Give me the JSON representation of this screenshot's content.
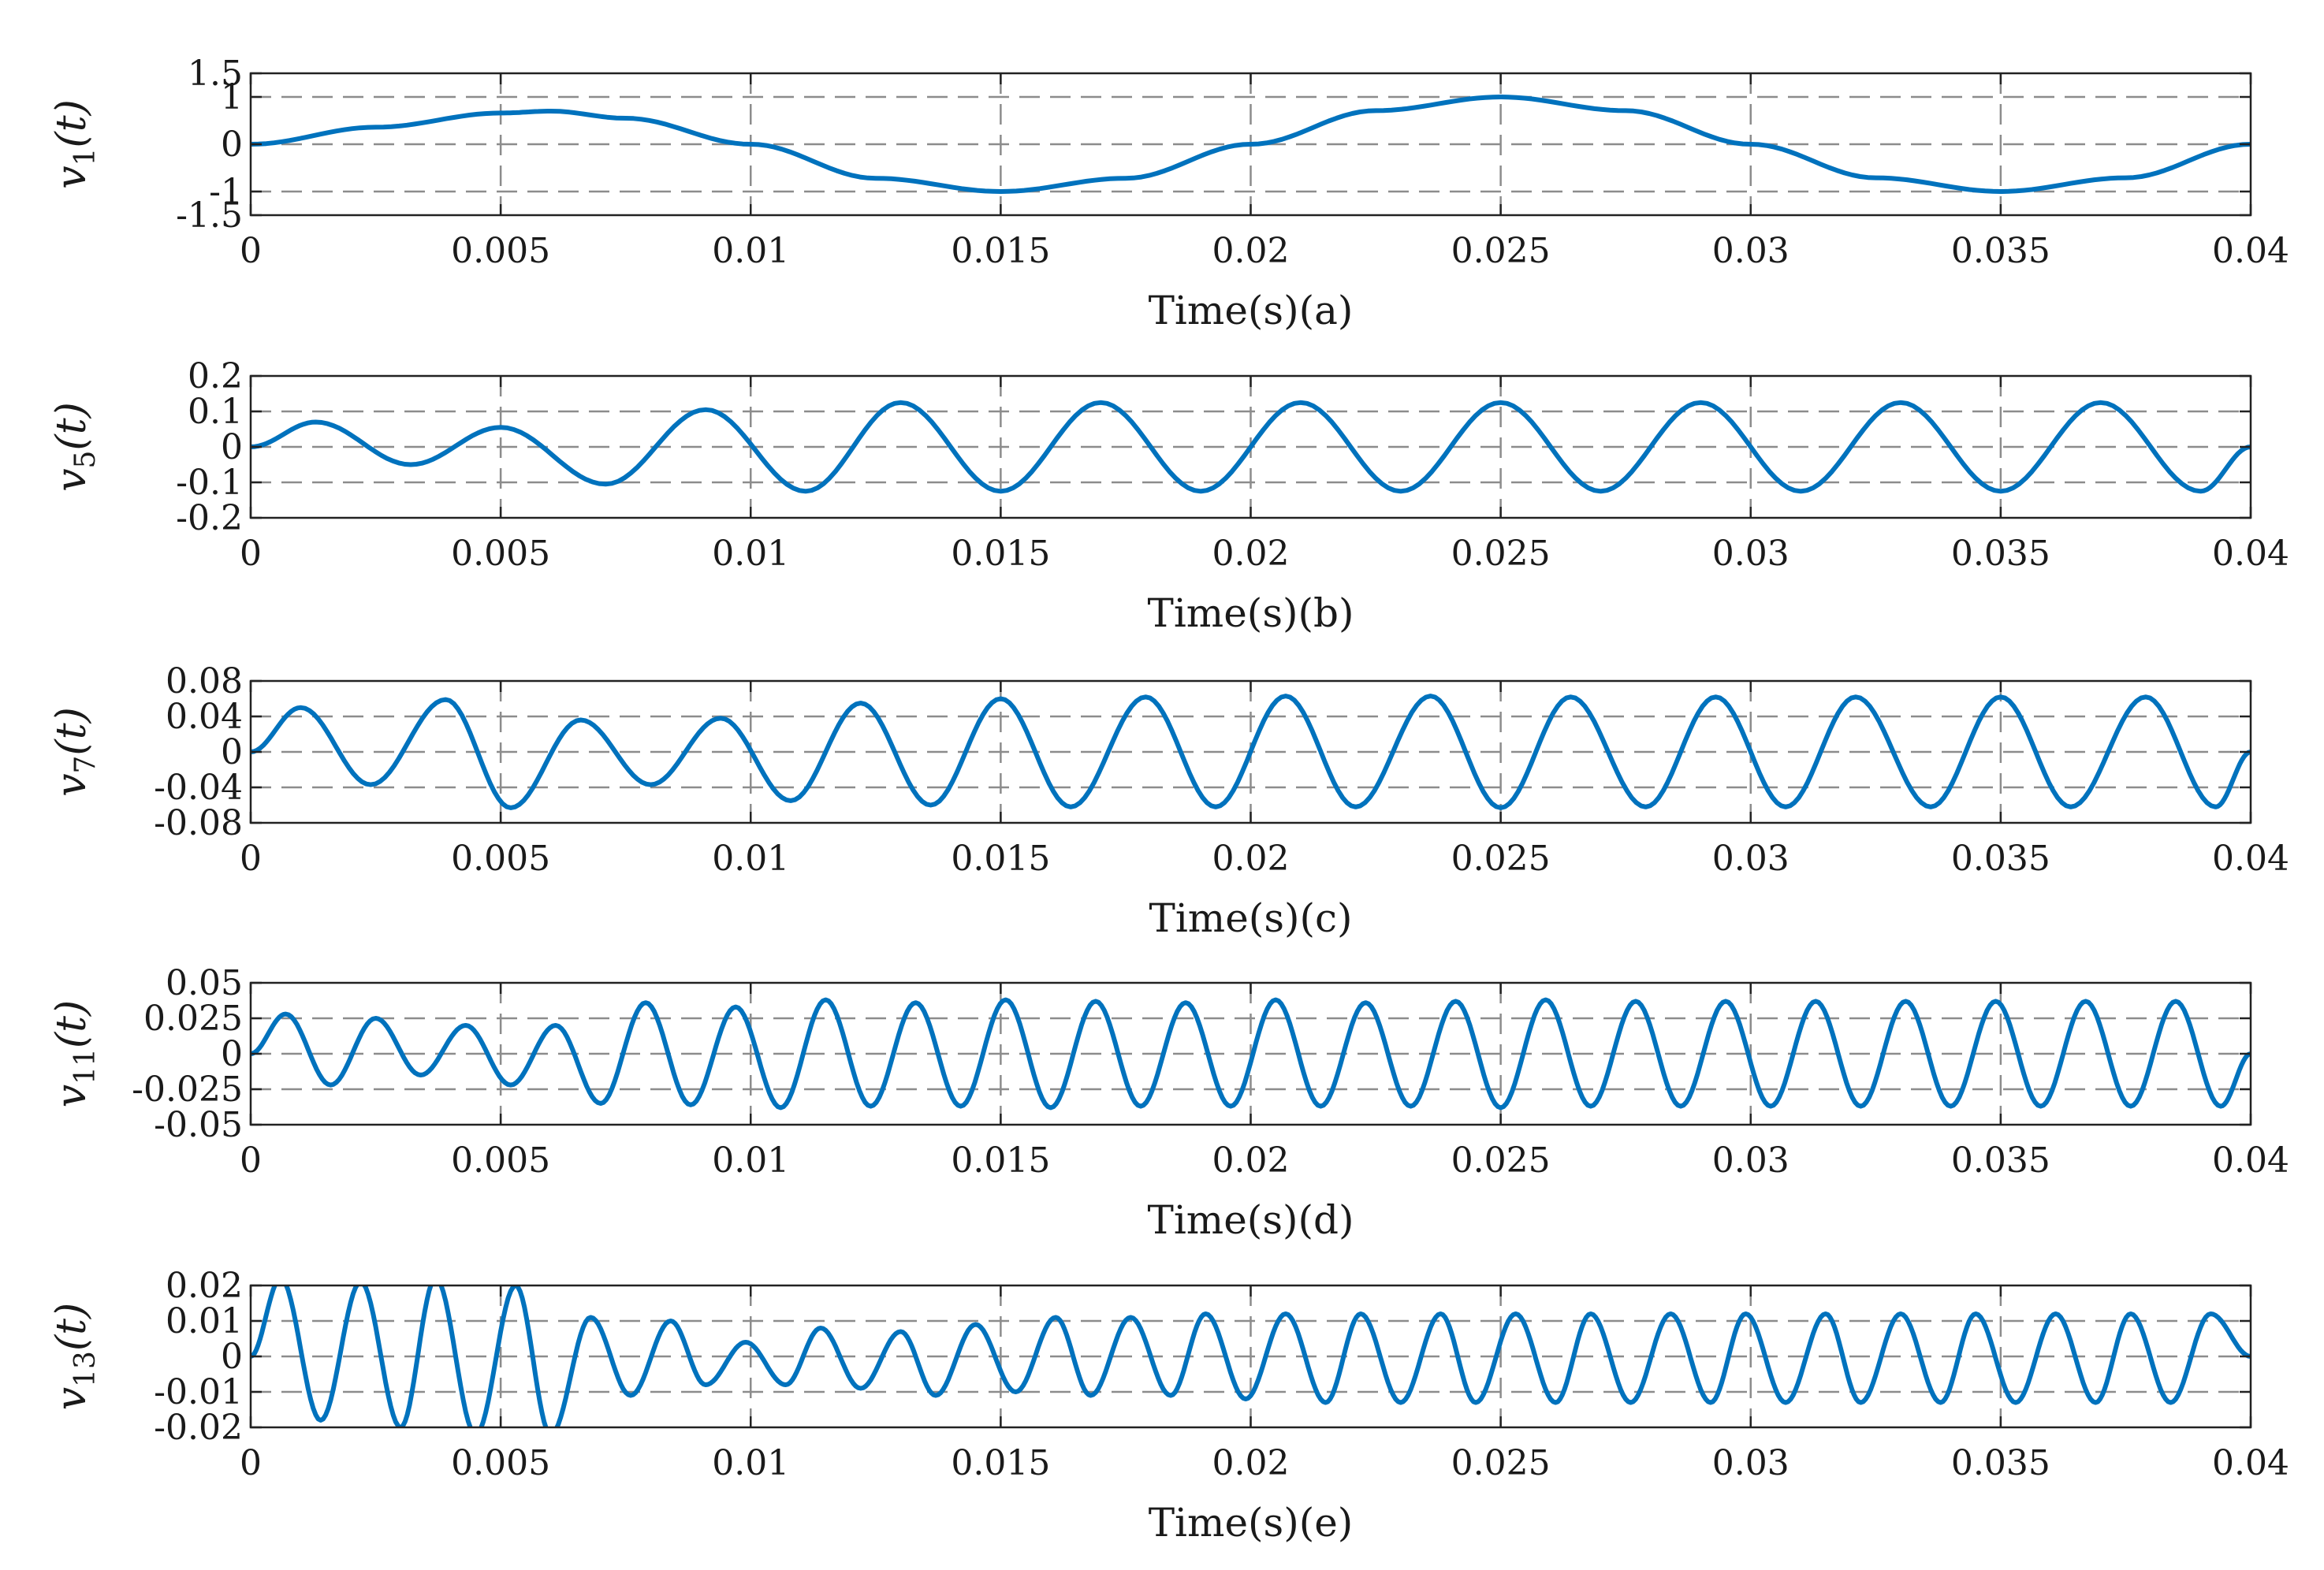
{
  "chart_data": [
    {
      "type": "line",
      "panel": "a",
      "ylabel": "v1(t)",
      "ylabel_main": "v",
      "ylabel_sub": "1",
      "ylabel_arg": "(t)",
      "xlabel": "Time(s)(a)",
      "xlim": [
        0,
        0.04
      ],
      "ylim": [
        -1.5,
        1.5
      ],
      "xticks": [
        "0",
        "0.005",
        "0.01",
        "0.015",
        "0.02",
        "0.025",
        "0.03",
        "0.035",
        "0.04"
      ],
      "yticks": [
        "1.5",
        "1",
        "0",
        "-1",
        "-1.5"
      ],
      "dashed_grid_y": [
        1,
        0,
        -1
      ],
      "dashed_grid_x": [
        0.005,
        0.01,
        0.015,
        0.02,
        0.025,
        0.03,
        0.035
      ],
      "series": [
        {
          "x": [
            0,
            0.0025,
            0.005,
            0.006,
            0.0075,
            0.01,
            0.0125,
            0.015,
            0.0175,
            0.02,
            0.0225,
            0.025,
            0.0275,
            0.03,
            0.0325,
            0.035,
            0.0375,
            0.04
          ],
          "values": [
            0,
            0.36,
            0.66,
            0.7,
            0.55,
            0,
            -0.72,
            -1.0,
            -0.72,
            0,
            0.71,
            1.0,
            0.71,
            0,
            -0.71,
            -1.0,
            -0.71,
            0
          ]
        }
      ]
    },
    {
      "type": "line",
      "panel": "b",
      "ylabel": "v5(t)",
      "ylabel_main": "v",
      "ylabel_sub": "5",
      "ylabel_arg": "(t)",
      "xlabel": "Time(s)(b)",
      "xlim": [
        0,
        0.04
      ],
      "ylim": [
        -0.2,
        0.2
      ],
      "xticks": [
        "0",
        "0.005",
        "0.01",
        "0.015",
        "0.02",
        "0.025",
        "0.03",
        "0.035",
        "0.04"
      ],
      "yticks": [
        "0.2",
        "0.1",
        "0",
        "-0.1",
        "-0.2"
      ],
      "dashed_grid_y": [
        0.1,
        0,
        -0.1
      ],
      "dashed_grid_x": [
        0.005,
        0.01,
        0.015,
        0.02,
        0.025,
        0.03,
        0.035
      ],
      "series": [
        {
          "x": [
            0,
            0.0013,
            0.0032,
            0.005,
            0.0071,
            0.0091,
            0.0111,
            0.013,
            0.015,
            0.017,
            0.019,
            0.021,
            0.023,
            0.025,
            0.027,
            0.029,
            0.031,
            0.033,
            0.035,
            0.037,
            0.039,
            0.04
          ],
          "values": [
            0,
            0.07,
            -0.05,
            0.055,
            -0.105,
            0.105,
            -0.125,
            0.125,
            -0.125,
            0.125,
            -0.125,
            0.125,
            -0.125,
            0.125,
            -0.125,
            0.125,
            -0.125,
            0.125,
            -0.125,
            0.125,
            -0.125,
            0
          ]
        }
      ]
    },
    {
      "type": "line",
      "panel": "c",
      "ylabel": "v7(t)",
      "ylabel_main": "v",
      "ylabel_sub": "7",
      "ylabel_arg": "(t)",
      "xlabel": "Time(s)(c)",
      "xlim": [
        0,
        0.04
      ],
      "ylim": [
        -0.08,
        0.08
      ],
      "xticks": [
        "0",
        "0.005",
        "0.01",
        "0.015",
        "0.02",
        "0.025",
        "0.03",
        "0.035",
        "0.04"
      ],
      "yticks": [
        "0.08",
        "0.04",
        "0",
        "-0.04",
        "-0.08"
      ],
      "dashed_grid_y": [
        0.04,
        0,
        -0.04
      ],
      "dashed_grid_x": [
        0.005,
        0.01,
        0.015,
        0.02,
        0.025,
        0.03,
        0.035
      ],
      "series": [
        {
          "x": [
            0,
            0.001,
            0.0024,
            0.0039,
            0.0052,
            0.0066,
            0.008,
            0.0094,
            0.0108,
            0.0122,
            0.0136,
            0.015,
            0.0164,
            0.0179,
            0.0193,
            0.0207,
            0.0221,
            0.0236,
            0.025,
            0.0264,
            0.0279,
            0.0293,
            0.0307,
            0.0321,
            0.0336,
            0.035,
            0.0364,
            0.0379,
            0.0393,
            0.04
          ],
          "values": [
            0,
            0.05,
            -0.037,
            0.059,
            -0.063,
            0.036,
            -0.037,
            0.038,
            -0.055,
            0.055,
            -0.06,
            0.06,
            -0.062,
            0.062,
            -0.062,
            0.063,
            -0.062,
            0.063,
            -0.063,
            0.062,
            -0.062,
            0.062,
            -0.062,
            0.062,
            -0.062,
            0.062,
            -0.062,
            0.062,
            -0.062,
            0
          ]
        }
      ]
    },
    {
      "type": "line",
      "panel": "d",
      "ylabel": "v11(t)",
      "ylabel_main": "v",
      "ylabel_sub": "11",
      "ylabel_arg": "(t)",
      "xlabel": "Time(s)(d)",
      "xlim": [
        0,
        0.04
      ],
      "ylim": [
        -0.05,
        0.05
      ],
      "xticks": [
        "0",
        "0.005",
        "0.01",
        "0.015",
        "0.02",
        "0.025",
        "0.03",
        "0.035",
        "0.04"
      ],
      "yticks": [
        "0.05",
        "0.025",
        "0",
        "-0.025",
        "-0.05"
      ],
      "dashed_grid_y": [
        0.025,
        0,
        -0.025
      ],
      "dashed_grid_x": [
        0.005,
        0.01,
        0.015,
        0.02,
        0.025,
        0.03,
        0.035
      ],
      "series": [
        {
          "x": [
            0,
            0.0007,
            0.0016,
            0.0025,
            0.0034,
            0.0043,
            0.0052,
            0.0061,
            0.007,
            0.0079,
            0.0088,
            0.0097,
            0.0106,
            0.0115,
            0.0124,
            0.0133,
            0.0142,
            0.0151,
            0.016,
            0.0169,
            0.0178,
            0.0187,
            0.0196,
            0.0205,
            0.0214,
            0.0223,
            0.0232,
            0.0241,
            0.025,
            0.0259,
            0.0268,
            0.0277,
            0.0286,
            0.0295,
            0.0304,
            0.0313,
            0.0322,
            0.0331,
            0.034,
            0.0349,
            0.0358,
            0.0367,
            0.0376,
            0.0385,
            0.0394,
            0.04
          ],
          "values": [
            0,
            0.028,
            -0.022,
            0.025,
            -0.015,
            0.02,
            -0.022,
            0.02,
            -0.035,
            0.036,
            -0.036,
            0.033,
            -0.038,
            0.038,
            -0.037,
            0.036,
            -0.037,
            0.038,
            -0.038,
            0.037,
            -0.037,
            0.036,
            -0.037,
            0.038,
            -0.037,
            0.036,
            -0.037,
            0.037,
            -0.038,
            0.038,
            -0.037,
            0.037,
            -0.037,
            0.037,
            -0.037,
            0.037,
            -0.037,
            0.037,
            -0.037,
            0.037,
            -0.037,
            0.037,
            -0.037,
            0.037,
            -0.037,
            0
          ]
        }
      ]
    },
    {
      "type": "line",
      "panel": "e",
      "ylabel": "v13(t)",
      "ylabel_main": "v",
      "ylabel_sub": "13",
      "ylabel_arg": "(t)",
      "xlabel": "Time(s)(e)",
      "xlim": [
        0,
        0.04
      ],
      "ylim": [
        -0.02,
        0.02
      ],
      "xticks": [
        "0",
        "0.005",
        "0.01",
        "0.015",
        "0.02",
        "0.025",
        "0.03",
        "0.035",
        "0.04"
      ],
      "yticks": [
        "0.02",
        "0.01",
        "0",
        "-0.01",
        "-0.02"
      ],
      "dashed_grid_y": [
        0.01,
        0,
        -0.01
      ],
      "dashed_grid_x": [
        0.005,
        0.01,
        0.015,
        0.02,
        0.025,
        0.03,
        0.035
      ],
      "series": [
        {
          "x": [
            0,
            0.0006,
            0.0014,
            0.0022,
            0.003,
            0.0037,
            0.0045,
            0.0053,
            0.006,
            0.0068,
            0.0076,
            0.0084,
            0.0091,
            0.0099,
            0.0107,
            0.0114,
            0.0122,
            0.013,
            0.0137,
            0.0145,
            0.0153,
            0.0161,
            0.0168,
            0.0176,
            0.0184,
            0.0191,
            0.0199,
            0.0207,
            0.0215,
            0.0222,
            0.023,
            0.0238,
            0.0245,
            0.0253,
            0.0261,
            0.0268,
            0.0276,
            0.0284,
            0.0292,
            0.0299,
            0.0307,
            0.0315,
            0.0322,
            0.033,
            0.0338,
            0.0345,
            0.0353,
            0.0361,
            0.0369,
            0.0376,
            0.0384,
            0.0392,
            0.04
          ],
          "values": [
            0,
            0.022,
            -0.018,
            0.021,
            -0.02,
            0.022,
            -0.022,
            0.02,
            -0.022,
            0.011,
            -0.011,
            0.01,
            -0.008,
            0.004,
            -0.008,
            0.008,
            -0.009,
            0.007,
            -0.011,
            0.009,
            -0.01,
            0.011,
            -0.011,
            0.011,
            -0.011,
            0.012,
            -0.012,
            0.012,
            -0.013,
            0.012,
            -0.013,
            0.012,
            -0.013,
            0.012,
            -0.013,
            0.012,
            -0.013,
            0.012,
            -0.013,
            0.012,
            -0.013,
            0.012,
            -0.013,
            0.012,
            -0.013,
            0.012,
            -0.013,
            0.012,
            -0.013,
            0.012,
            -0.013,
            0.012,
            0
          ]
        }
      ]
    }
  ],
  "colors": {
    "line": "#0072BD",
    "axis": "#222222",
    "grid": "#8c8c8c"
  }
}
